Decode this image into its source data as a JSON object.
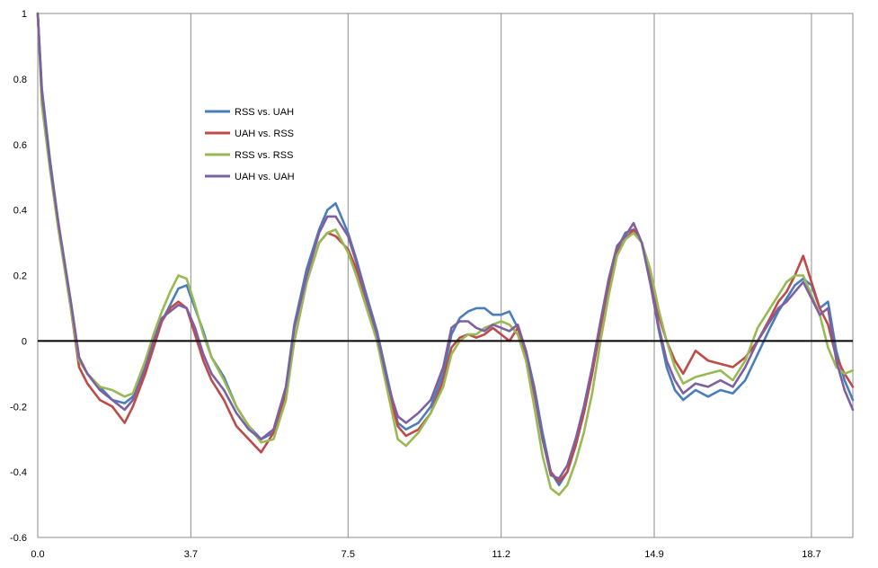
{
  "chart_data": {
    "type": "line",
    "title": "",
    "xlabel": "",
    "ylabel": "",
    "xlim": [
      0,
      19.7
    ],
    "ylim": [
      -0.6,
      1
    ],
    "x_ticks": [
      "0.0",
      "3.7",
      "7.5",
      "11.2",
      "14.9",
      "18.7"
    ],
    "x_tick_values": [
      0.0,
      3.7,
      7.5,
      11.2,
      14.9,
      18.7
    ],
    "y_ticks": [
      "1",
      "0.8",
      "0.6",
      "0.4",
      "0.2",
      "0",
      "-0.2",
      "-0.4",
      "-0.6"
    ],
    "y_tick_values": [
      1,
      0.8,
      0.6,
      0.4,
      0.2,
      0,
      -0.2,
      -0.4,
      -0.6
    ],
    "grid": "vertical",
    "zero_line": true,
    "legend_position": "upper-left-inside",
    "series": [
      {
        "name": "RSS vs. UAH",
        "color": "#4A7EBB",
        "x": [
          0,
          0.1,
          0.3,
          0.5,
          0.8,
          1.0,
          1.2,
          1.5,
          1.8,
          2.1,
          2.3,
          2.6,
          2.8,
          3.0,
          3.2,
          3.4,
          3.6,
          3.8,
          4.0,
          4.2,
          4.5,
          4.8,
          5.1,
          5.4,
          5.7,
          6.0,
          6.2,
          6.5,
          6.8,
          7.0,
          7.2,
          7.5,
          7.7,
          7.9,
          8.2,
          8.5,
          8.7,
          8.9,
          9.2,
          9.5,
          9.8,
          10.0,
          10.2,
          10.4,
          10.6,
          10.8,
          11.0,
          11.2,
          11.4,
          11.6,
          11.8,
          12.0,
          12.2,
          12.4,
          12.6,
          12.8,
          13.0,
          13.2,
          13.4,
          13.6,
          13.8,
          14.0,
          14.2,
          14.4,
          14.6,
          14.8,
          15.0,
          15.2,
          15.4,
          15.6,
          15.9,
          16.2,
          16.5,
          16.8,
          17.1,
          17.4,
          17.7,
          17.9,
          18.1,
          18.3,
          18.5,
          18.7,
          18.9,
          19.1,
          19.3,
          19.5,
          19.7
        ],
        "values": [
          1.0,
          0.77,
          0.55,
          0.36,
          0.12,
          -0.05,
          -0.1,
          -0.14,
          -0.18,
          -0.19,
          -0.17,
          -0.09,
          0.0,
          0.06,
          0.11,
          0.16,
          0.17,
          0.1,
          0.03,
          -0.05,
          -0.11,
          -0.2,
          -0.26,
          -0.3,
          -0.28,
          -0.14,
          0.05,
          0.22,
          0.34,
          0.4,
          0.42,
          0.33,
          0.25,
          0.16,
          0.03,
          -0.14,
          -0.25,
          -0.27,
          -0.25,
          -0.2,
          -0.1,
          0.02,
          0.07,
          0.09,
          0.1,
          0.1,
          0.08,
          0.08,
          0.09,
          0.04,
          -0.03,
          -0.14,
          -0.28,
          -0.4,
          -0.44,
          -0.4,
          -0.32,
          -0.22,
          -0.1,
          0.05,
          0.18,
          0.28,
          0.33,
          0.34,
          0.3,
          0.18,
          0.04,
          -0.08,
          -0.15,
          -0.18,
          -0.15,
          -0.17,
          -0.15,
          -0.16,
          -0.12,
          -0.04,
          0.04,
          0.09,
          0.13,
          0.17,
          0.19,
          0.17,
          0.1,
          0.12,
          -0.03,
          -0.12,
          -0.18
        ]
      },
      {
        "name": "UAH vs. RSS",
        "color": "#BE4B48",
        "x": [
          0,
          0.1,
          0.3,
          0.5,
          0.8,
          1.0,
          1.2,
          1.5,
          1.8,
          2.1,
          2.3,
          2.6,
          2.8,
          3.0,
          3.2,
          3.4,
          3.6,
          3.8,
          4.0,
          4.2,
          4.5,
          4.8,
          5.1,
          5.4,
          5.7,
          6.0,
          6.2,
          6.5,
          6.8,
          7.0,
          7.2,
          7.5,
          7.7,
          7.9,
          8.2,
          8.5,
          8.7,
          8.9,
          9.2,
          9.5,
          9.8,
          10.0,
          10.2,
          10.4,
          10.6,
          10.8,
          11.0,
          11.2,
          11.4,
          11.6,
          11.8,
          12.0,
          12.2,
          12.4,
          12.6,
          12.8,
          13.0,
          13.2,
          13.4,
          13.6,
          13.8,
          14.0,
          14.2,
          14.4,
          14.6,
          14.8,
          15.0,
          15.2,
          15.4,
          15.6,
          15.9,
          16.2,
          16.5,
          16.8,
          17.1,
          17.4,
          17.7,
          17.9,
          18.1,
          18.3,
          18.5,
          18.7,
          18.9,
          19.1,
          19.3,
          19.5,
          19.7
        ],
        "values": [
          1.0,
          0.74,
          0.53,
          0.35,
          0.1,
          -0.08,
          -0.13,
          -0.18,
          -0.2,
          -0.25,
          -0.2,
          -0.1,
          -0.02,
          0.06,
          0.1,
          0.12,
          0.1,
          0.02,
          -0.06,
          -0.12,
          -0.18,
          -0.26,
          -0.3,
          -0.34,
          -0.28,
          -0.16,
          0.0,
          0.18,
          0.3,
          0.33,
          0.32,
          0.28,
          0.22,
          0.14,
          0.0,
          -0.16,
          -0.26,
          -0.29,
          -0.27,
          -0.22,
          -0.12,
          -0.02,
          0.01,
          0.02,
          0.01,
          0.02,
          0.04,
          0.02,
          0.0,
          0.04,
          -0.04,
          -0.16,
          -0.3,
          -0.4,
          -0.43,
          -0.4,
          -0.32,
          -0.22,
          -0.1,
          0.04,
          0.17,
          0.27,
          0.31,
          0.34,
          0.3,
          0.2,
          0.08,
          0.0,
          -0.06,
          -0.1,
          -0.03,
          -0.06,
          -0.07,
          -0.08,
          -0.05,
          0.0,
          0.07,
          0.12,
          0.15,
          0.2,
          0.26,
          0.18,
          0.1,
          0.05,
          -0.05,
          -0.1,
          -0.14
        ]
      },
      {
        "name": "RSS vs. RSS",
        "color": "#98B954",
        "x": [
          0,
          0.1,
          0.3,
          0.5,
          0.8,
          1.0,
          1.2,
          1.5,
          1.8,
          2.1,
          2.3,
          2.6,
          2.8,
          3.0,
          3.2,
          3.4,
          3.6,
          3.8,
          4.0,
          4.2,
          4.5,
          4.8,
          5.1,
          5.4,
          5.7,
          6.0,
          6.2,
          6.5,
          6.8,
          7.0,
          7.2,
          7.5,
          7.7,
          7.9,
          8.2,
          8.5,
          8.7,
          8.9,
          9.2,
          9.5,
          9.8,
          10.0,
          10.2,
          10.4,
          10.6,
          10.8,
          11.0,
          11.2,
          11.4,
          11.6,
          11.8,
          12.0,
          12.2,
          12.4,
          12.6,
          12.8,
          13.0,
          13.2,
          13.4,
          13.6,
          13.8,
          14.0,
          14.2,
          14.4,
          14.6,
          14.8,
          15.0,
          15.2,
          15.4,
          15.6,
          15.9,
          16.2,
          16.5,
          16.8,
          17.1,
          17.4,
          17.7,
          17.9,
          18.1,
          18.3,
          18.5,
          18.7,
          18.9,
          19.1,
          19.3,
          19.5,
          19.7
        ],
        "values": [
          1.0,
          0.72,
          0.52,
          0.34,
          0.1,
          -0.06,
          -0.1,
          -0.14,
          -0.15,
          -0.17,
          -0.16,
          -0.06,
          0.02,
          0.09,
          0.15,
          0.2,
          0.19,
          0.11,
          0.02,
          -0.05,
          -0.12,
          -0.2,
          -0.26,
          -0.31,
          -0.3,
          -0.18,
          0.0,
          0.18,
          0.3,
          0.33,
          0.34,
          0.27,
          0.2,
          0.12,
          0.0,
          -0.18,
          -0.3,
          -0.32,
          -0.28,
          -0.22,
          -0.14,
          -0.04,
          0.0,
          0.02,
          0.02,
          0.04,
          0.05,
          0.06,
          0.05,
          0.02,
          -0.06,
          -0.2,
          -0.35,
          -0.45,
          -0.47,
          -0.44,
          -0.37,
          -0.28,
          -0.16,
          0.0,
          0.14,
          0.26,
          0.31,
          0.33,
          0.3,
          0.22,
          0.1,
          0.0,
          -0.08,
          -0.13,
          -0.11,
          -0.1,
          -0.09,
          -0.12,
          -0.06,
          0.04,
          0.1,
          0.14,
          0.18,
          0.2,
          0.2,
          0.14,
          0.08,
          -0.02,
          -0.08,
          -0.1,
          -0.09
        ]
      },
      {
        "name": "UAH vs. UAH",
        "color": "#7D60A0",
        "x": [
          0,
          0.1,
          0.3,
          0.5,
          0.8,
          1.0,
          1.2,
          1.5,
          1.8,
          2.1,
          2.3,
          2.6,
          2.8,
          3.0,
          3.2,
          3.4,
          3.6,
          3.8,
          4.0,
          4.2,
          4.5,
          4.8,
          5.1,
          5.4,
          5.7,
          6.0,
          6.2,
          6.5,
          6.8,
          7.0,
          7.2,
          7.5,
          7.7,
          7.9,
          8.2,
          8.5,
          8.7,
          8.9,
          9.2,
          9.5,
          9.8,
          10.0,
          10.2,
          10.4,
          10.6,
          10.8,
          11.0,
          11.2,
          11.4,
          11.6,
          11.8,
          12.0,
          12.2,
          12.4,
          12.6,
          12.8,
          13.0,
          13.2,
          13.4,
          13.6,
          13.8,
          14.0,
          14.2,
          14.4,
          14.6,
          14.8,
          15.0,
          15.2,
          15.4,
          15.6,
          15.9,
          16.2,
          16.5,
          16.8,
          17.1,
          17.4,
          17.7,
          17.9,
          18.1,
          18.3,
          18.5,
          18.7,
          18.9,
          19.1,
          19.3,
          19.5,
          19.7
        ],
        "values": [
          1.0,
          0.76,
          0.54,
          0.36,
          0.12,
          -0.05,
          -0.1,
          -0.15,
          -0.18,
          -0.21,
          -0.18,
          -0.08,
          0.0,
          0.07,
          0.09,
          0.11,
          0.1,
          0.04,
          -0.04,
          -0.1,
          -0.15,
          -0.22,
          -0.27,
          -0.3,
          -0.27,
          -0.14,
          0.04,
          0.2,
          0.33,
          0.38,
          0.38,
          0.32,
          0.24,
          0.15,
          0.02,
          -0.15,
          -0.23,
          -0.25,
          -0.22,
          -0.18,
          -0.08,
          0.04,
          0.06,
          0.06,
          0.04,
          0.03,
          0.05,
          0.04,
          0.03,
          0.05,
          -0.03,
          -0.15,
          -0.3,
          -0.41,
          -0.42,
          -0.38,
          -0.3,
          -0.2,
          -0.08,
          0.06,
          0.19,
          0.29,
          0.32,
          0.36,
          0.3,
          0.18,
          0.05,
          -0.06,
          -0.12,
          -0.16,
          -0.13,
          -0.14,
          -0.12,
          -0.14,
          -0.08,
          0.0,
          0.06,
          0.1,
          0.12,
          0.15,
          0.18,
          0.13,
          0.08,
          0.1,
          -0.06,
          -0.15,
          -0.21
        ]
      }
    ]
  }
}
